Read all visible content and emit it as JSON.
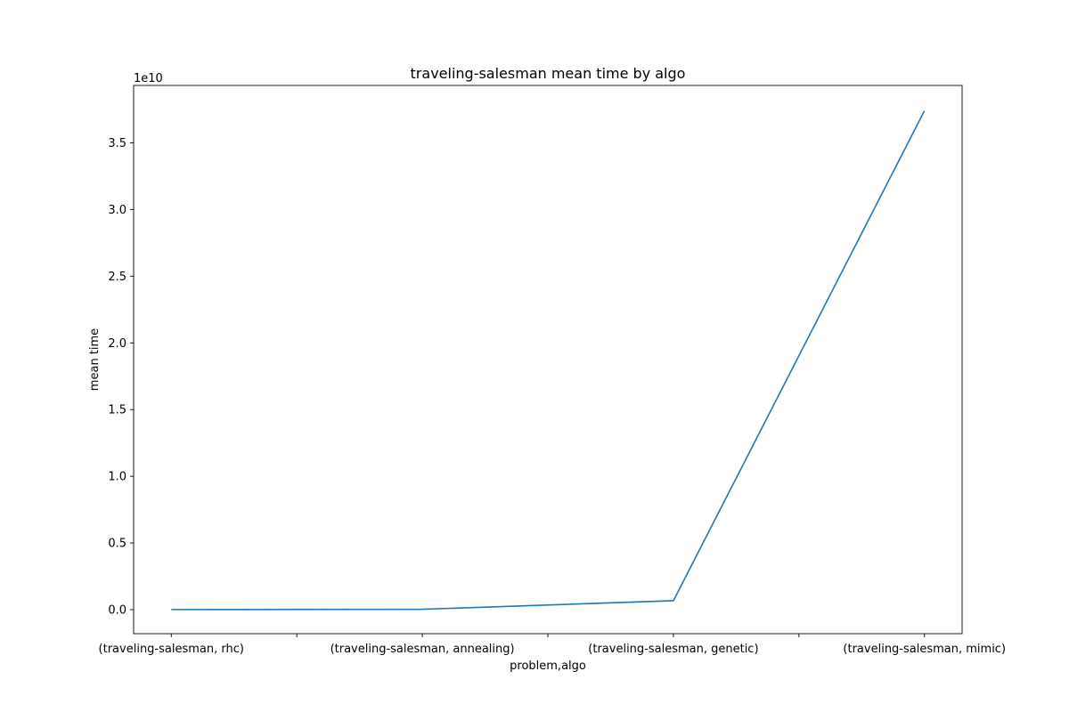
{
  "chart_data": {
    "type": "line",
    "title": "traveling-salesman mean time by algo",
    "xlabel": "problem,algo",
    "ylabel": "mean time",
    "y_offset_text": "1e10",
    "categories": [
      "(traveling-salesman, rhc)",
      "(traveling-salesman, annealing)",
      "(traveling-salesman, genetic)",
      "(traveling-salesman, mimic)"
    ],
    "values": [
      10000000.0,
      30000000.0,
      670000000.0,
      37400000000.0
    ],
    "ylim": [
      -1800000000.0,
      39300000000.0
    ],
    "yticks": [
      0,
      5000000000.0,
      10000000000.0,
      15000000000.0,
      20000000000.0,
      25000000000.0,
      30000000000.0,
      35000000000.0
    ],
    "ytick_labels": [
      "0.0",
      "0.5",
      "1.0",
      "1.5",
      "2.0",
      "2.5",
      "3.0",
      "3.5"
    ],
    "minor_xticks": [
      0.5,
      1.5,
      2.5
    ],
    "grid": false,
    "line_color": "#1f77b4"
  }
}
